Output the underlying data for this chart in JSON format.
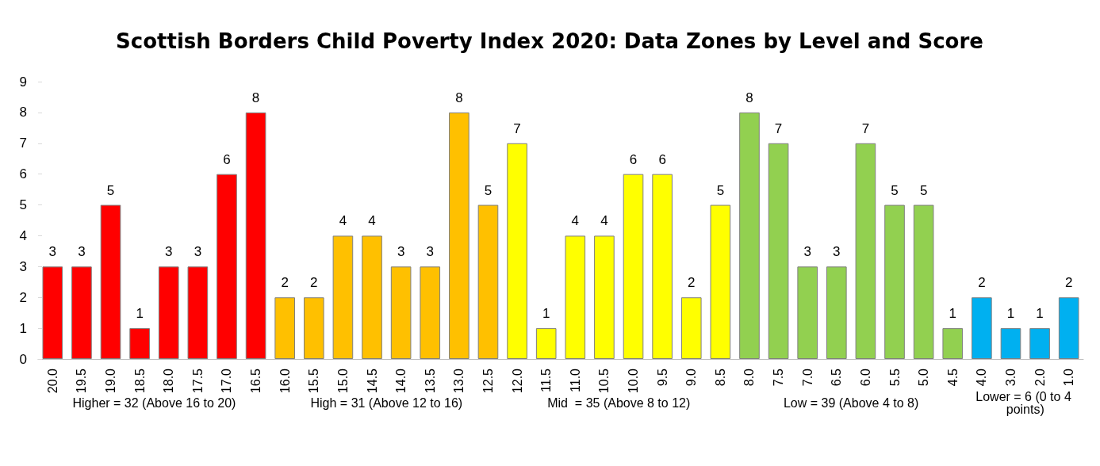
{
  "chart_data": {
    "type": "bar",
    "title": "Scottish Borders Child Poverty Index 2020: Data Zones by Level and Score",
    "categories": [
      "20.0",
      "19.5",
      "19.0",
      "18.5",
      "18.0",
      "17.5",
      "17.0",
      "16.5",
      "16.0",
      "15.5",
      "15.0",
      "14.5",
      "14.0",
      "13.5",
      "13.0",
      "12.5",
      "12.0",
      "11.5",
      "11.0",
      "10.5",
      "10.0",
      "9.5",
      "9.0",
      "8.5",
      "8.0",
      "7.5",
      "7.0",
      "6.5",
      "6.0",
      "5.5",
      "5.0",
      "4.5",
      "4.0",
      "3.0",
      "2.0",
      "1.0"
    ],
    "series": [
      {
        "name": "Higher = 32 (Above 16 to 20)",
        "color": "#ff0000",
        "values": [
          3,
          3,
          5,
          1,
          3,
          3,
          6,
          8,
          null,
          null,
          null,
          null,
          null,
          null,
          null,
          null,
          null,
          null,
          null,
          null,
          null,
          null,
          null,
          null,
          null,
          null,
          null,
          null,
          null,
          null,
          null,
          null,
          null,
          null,
          null,
          null
        ]
      },
      {
        "name": "High = 31 (Above 12 to 16)",
        "color": "#ffc000",
        "values": [
          null,
          null,
          null,
          null,
          null,
          null,
          null,
          null,
          2,
          2,
          4,
          4,
          3,
          3,
          8,
          5,
          null,
          null,
          null,
          null,
          null,
          null,
          null,
          null,
          null,
          null,
          null,
          null,
          null,
          null,
          null,
          null,
          null,
          null,
          null,
          null
        ]
      },
      {
        "name": "Mid  = 35 (Above 8 to 12)",
        "color": "#ffff00",
        "values": [
          null,
          null,
          null,
          null,
          null,
          null,
          null,
          null,
          null,
          null,
          null,
          null,
          null,
          null,
          null,
          null,
          7,
          1,
          4,
          4,
          6,
          6,
          2,
          5,
          null,
          null,
          null,
          null,
          null,
          null,
          null,
          null,
          null,
          null,
          null,
          null
        ]
      },
      {
        "name": "Low = 39 (Above 4 to 8)",
        "color": "#92d050",
        "values": [
          null,
          null,
          null,
          null,
          null,
          null,
          null,
          null,
          null,
          null,
          null,
          null,
          null,
          null,
          null,
          null,
          null,
          null,
          null,
          null,
          null,
          null,
          null,
          null,
          8,
          7,
          3,
          3,
          7,
          5,
          5,
          1,
          null,
          null,
          null,
          null
        ]
      },
      {
        "name": "Lower = 6 (0 to 4 points)",
        "color": "#00b0f0",
        "values": [
          null,
          null,
          null,
          null,
          null,
          null,
          null,
          null,
          null,
          null,
          null,
          null,
          null,
          null,
          null,
          null,
          null,
          null,
          null,
          null,
          null,
          null,
          null,
          null,
          null,
          null,
          null,
          null,
          null,
          null,
          null,
          null,
          2,
          1,
          1,
          2
        ]
      }
    ],
    "ylim": [
      0,
      9
    ],
    "yticks": [
      0,
      1,
      2,
      3,
      4,
      5,
      6,
      7,
      8,
      9
    ],
    "grid": false,
    "data_labels": true
  }
}
